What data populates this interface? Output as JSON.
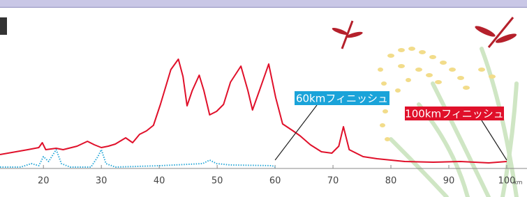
{
  "chart_data": {
    "type": "line",
    "x_unit": "km",
    "xlim": [
      12.5,
      103.5
    ],
    "ylim": [
      0,
      230
    ],
    "xticks": [
      20,
      30,
      40,
      50,
      60,
      70,
      80,
      90,
      100
    ],
    "series": [
      {
        "color": "#e0102a",
        "x": [
          12.5,
          17.3,
          19.2,
          19.8,
          20.4,
          22.2,
          23.4,
          25.8,
          27.6,
          28.8,
          30.0,
          31.2,
          32.4,
          34.2,
          35.4,
          36.6,
          37.8,
          39.0,
          40.2,
          42.0,
          43.3,
          44.1,
          44.8,
          45.7,
          46.9,
          47.7,
          48.7,
          49.9,
          51.1,
          52.3,
          54.1,
          55.3,
          56.1,
          57.3,
          58.9,
          60.1,
          61.3,
          63.1,
          64.3,
          66.1,
          68.0,
          69.8,
          71.0,
          71.8,
          72.8,
          75.2,
          77.6,
          82.4,
          87.3,
          92.0,
          96.9,
          100.0
        ],
        "values": [
          20,
          27,
          30,
          37,
          27,
          29,
          27,
          32,
          39,
          34,
          30,
          32,
          35,
          44,
          37,
          49,
          54,
          62,
          92,
          142,
          157,
          132,
          90,
          112,
          134,
          112,
          77,
          82,
          92,
          124,
          147,
          112,
          84,
          112,
          150,
          102,
          64,
          54,
          47,
          34,
          24,
          22,
          32,
          60,
          27,
          17,
          14,
          10,
          9,
          10,
          8,
          10
        ]
      },
      {
        "color": "#29a8d8",
        "dotted": true,
        "x": [
          12.5,
          16.1,
          17.9,
          19.2,
          20.0,
          20.9,
          22.2,
          23.1,
          24.6,
          28.2,
          29.4,
          30.0,
          30.8,
          32.4,
          40.2,
          47.5,
          48.7,
          49.9,
          52.3,
          59.5,
          60.0
        ],
        "values": [
          2,
          2,
          7,
          4,
          17,
          10,
          27,
          7,
          2,
          2,
          17,
          27,
          7,
          2,
          4,
          7,
          12,
          7,
          5,
          4,
          2
        ]
      }
    ],
    "annotations": [
      {
        "text": "60kmフィニッシュ",
        "x": 60,
        "color": "#1aa3d9"
      },
      {
        "text": "100kmフィニッシュ",
        "x": 100,
        "color": "#e0102a"
      }
    ]
  }
}
